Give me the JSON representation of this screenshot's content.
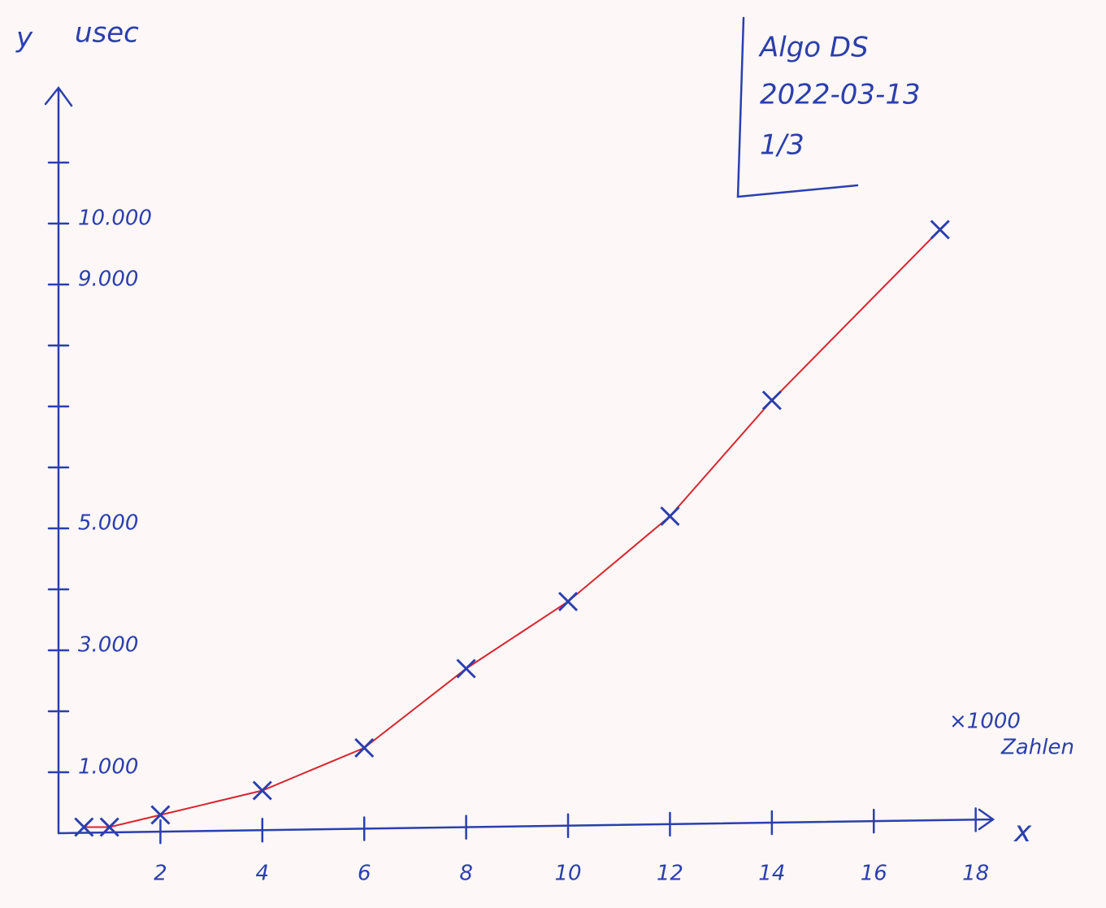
{
  "chart_data": {
    "type": "line",
    "y_label": "y",
    "y_unit": "usec",
    "x_label": "x",
    "x_unit": [
      "×1000",
      "Zahlen"
    ],
    "notes": [
      "Algo DS",
      "2022-03-13",
      "1/3"
    ],
    "xlim": [
      0,
      18.5
    ],
    "ylim": [
      0,
      12200
    ],
    "xticks": [
      2,
      4,
      6,
      8,
      10,
      12,
      14,
      16,
      18
    ],
    "yticks": [
      {
        "value": 1000,
        "label": "1.000"
      },
      {
        "value": 2000,
        "label": null
      },
      {
        "value": 3000,
        "label": "3.000"
      },
      {
        "value": 4000,
        "label": null
      },
      {
        "value": 5000,
        "label": "5.000"
      },
      {
        "value": 6000,
        "label": null
      },
      {
        "value": 7000,
        "label": null
      },
      {
        "value": 8000,
        "label": null
      },
      {
        "value": 9000,
        "label": "9.000"
      },
      {
        "value": 10000,
        "label": "10.000"
      },
      {
        "value": 11000,
        "label": null
      }
    ],
    "series": [
      {
        "color": "#d8262f",
        "marker_color": "#2b3fae",
        "x": [
          0.5,
          1,
          2,
          4,
          6,
          8,
          10,
          12,
          14,
          17.3
        ],
        "values": [
          100,
          100,
          300,
          700,
          1400,
          2700,
          3800,
          5200,
          7100,
          9900
        ]
      }
    ]
  }
}
